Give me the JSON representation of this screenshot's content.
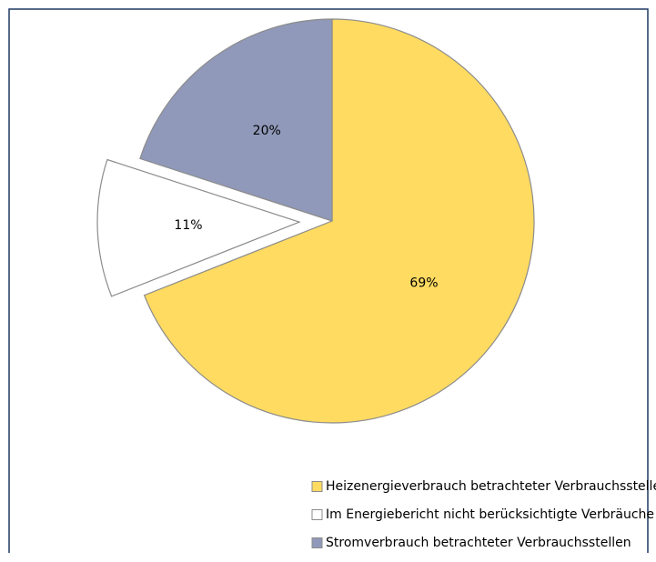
{
  "chart_data": {
    "type": "pie",
    "categories": [
      "Heizenergieverbrauch betrachteter Verbrauchsstellen",
      "Im Energiebericht nicht berücksichtigte Verbräuche",
      "Stromverbrauch betrachteter Verbrauchsstellen"
    ],
    "values": [
      69,
      11,
      20
    ],
    "value_labels": [
      "69%",
      "11%",
      "20%"
    ],
    "colors": [
      "#ffdb61",
      "#ffffff",
      "#9099b9"
    ],
    "exploded": [
      false,
      true,
      false
    ],
    "legend": "bottom"
  }
}
